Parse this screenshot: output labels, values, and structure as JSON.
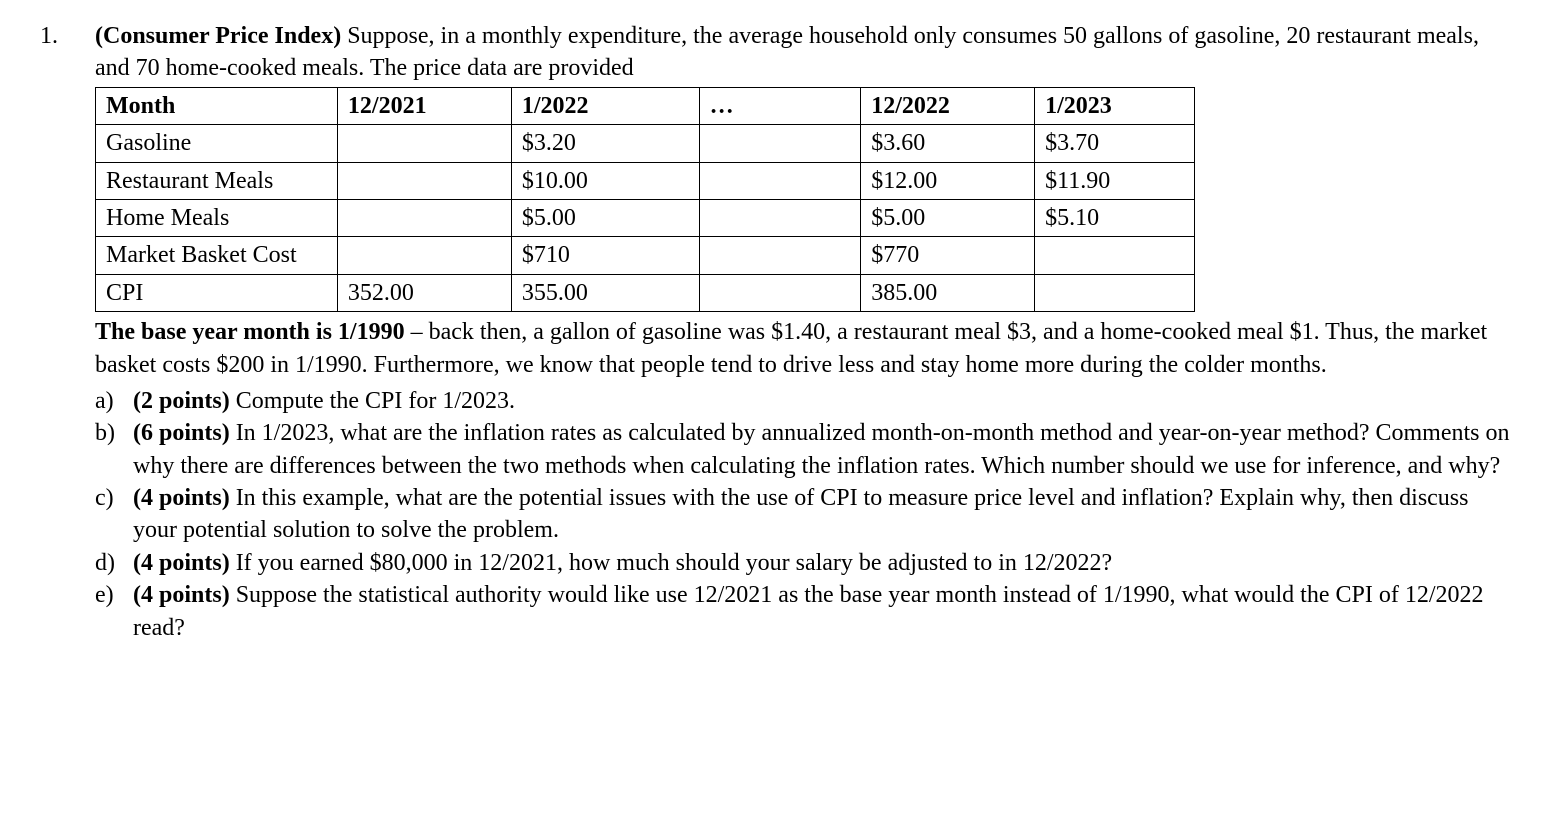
{
  "question_number": "1.",
  "intro_bold": "(Consumer Price Index)",
  "intro_rest": " Suppose, in a monthly expenditure, the average household only consumes 50 gallons of gasoline, 20 restaurant meals, and 70 home-cooked meals. The price data are provided",
  "table": {
    "header": [
      "Month",
      "12/2021",
      "1/2022",
      "…",
      "12/2022",
      "1/2023"
    ],
    "rows": [
      [
        "Gasoline",
        "",
        "$3.20",
        "",
        "$3.60",
        "$3.70"
      ],
      [
        "Restaurant Meals",
        "",
        "$10.00",
        "",
        "$12.00",
        "$11.90"
      ],
      [
        "Home Meals",
        "",
        "$5.00",
        "",
        "$5.00",
        "$5.10"
      ],
      [
        "Market Basket Cost",
        "",
        "$710",
        "",
        "$770",
        ""
      ],
      [
        "CPI",
        "352.00",
        "355.00",
        "",
        "385.00",
        ""
      ]
    ]
  },
  "after_table_bold": "The base year month is 1/1990",
  "after_table_rest": " – back then, a gallon of gasoline was $1.40, a restaurant meal $3, and a home-cooked meal $1. Thus, the market basket costs $200 in 1/1990. Furthermore, we know that people tend to drive less and stay home more during the colder months.",
  "subitems": [
    {
      "letter": "a)",
      "points": "(2 points)",
      "text": " Compute the CPI for 1/2023."
    },
    {
      "letter": "b)",
      "points": "(6 points)",
      "text": " In 1/2023, what are the inflation rates as calculated by annualized month-on-month method and year-on-year method? Comments on why there are differences between the two methods when calculating the inflation rates. Which number should we use for inference, and why?"
    },
    {
      "letter": "c)",
      "points": "(4 points)",
      "text": " In this example, what are the potential issues with the use of CPI to measure price level and inflation? Explain why, then discuss your potential solution to solve the problem."
    },
    {
      "letter": "d)",
      "points": "(4 points)",
      "text": " If you earned $80,000 in 12/2021, how much should your salary be adjusted to in 12/2022?"
    },
    {
      "letter": "e)",
      "points": "(4 points)",
      "text": " Suppose the statistical authority would like use 12/2021 as the base year month instead of 1/1990, what would the CPI of 12/2022 read?"
    }
  ]
}
